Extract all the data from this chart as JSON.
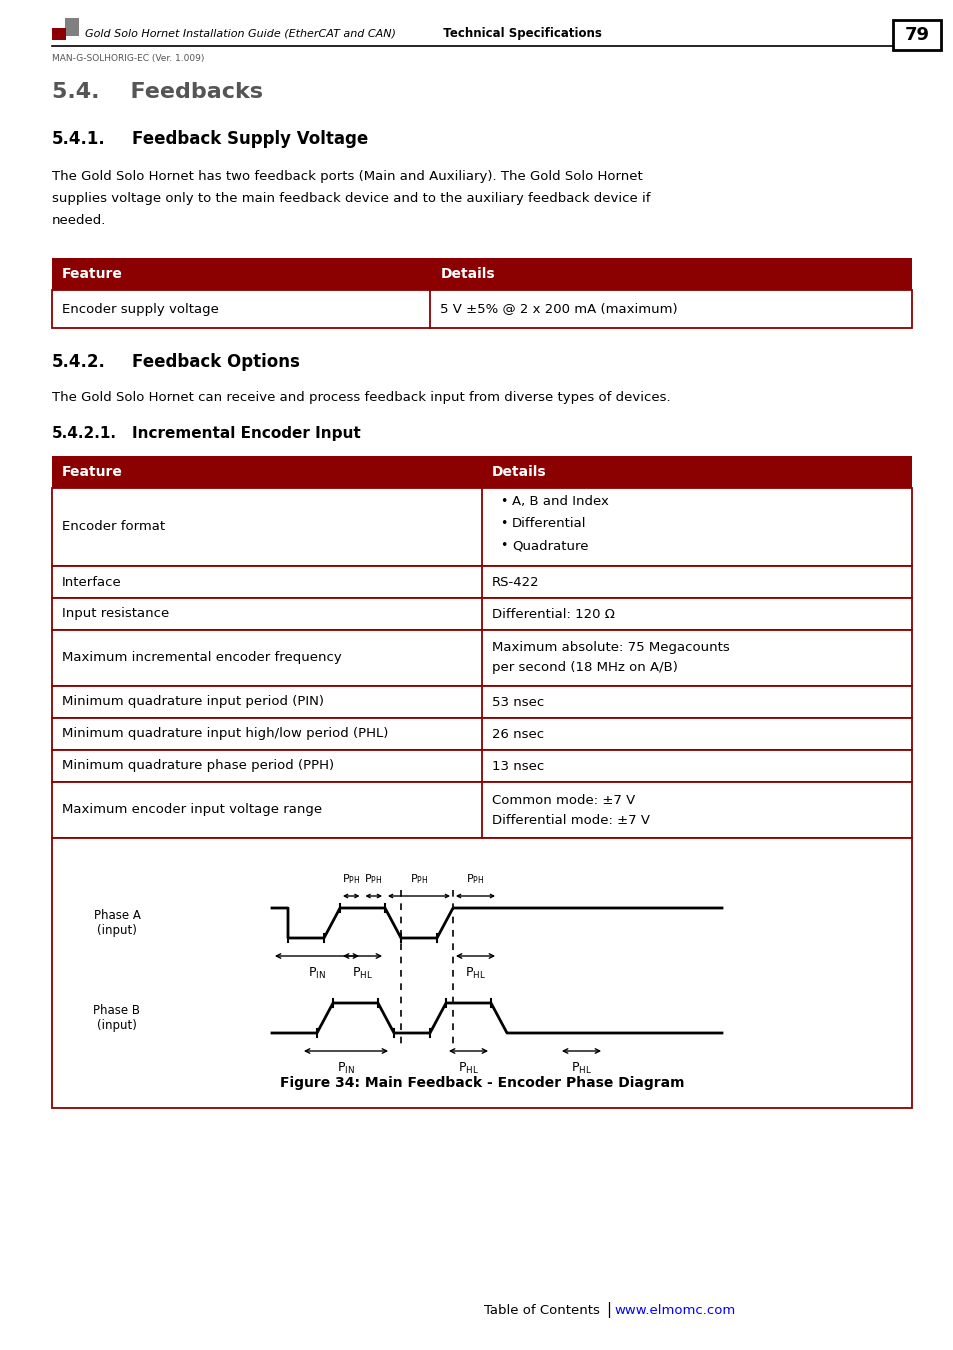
{
  "page_title": "Gold Solo Hornet Installation Guide (EtherCAT and CAN)",
  "page_title_bold": "  Technical Specifications",
  "page_num": "79",
  "doc_id": "MAN-G-SOLHORIG-EC (Ver. 1.009)",
  "section_54": "5.4.    Feedbacks",
  "section_541_num": "5.4.1.",
  "section_541_title": "Feedback Supply Voltage",
  "para_541_lines": [
    "The Gold Solo Hornet has two feedback ports (Main and Auxiliary). The Gold Solo Hornet",
    "supplies voltage only to the main feedback device and to the auxiliary feedback device if",
    "needed."
  ],
  "table1_header": [
    "Feature",
    "Details"
  ],
  "table1_rows": [
    [
      "Encoder supply voltage",
      "5 V ±5% @ 2 x 200 mA (maximum)"
    ]
  ],
  "section_542_num": "5.4.2.",
  "section_542_title": "Feedback Options",
  "para_542": "The Gold Solo Hornet can receive and process feedback input from diverse types of devices.",
  "section_5421_num": "5.4.2.1.",
  "section_5421_title": "Incremental Encoder Input",
  "table2_header": [
    "Feature",
    "Details"
  ],
  "table2_rows": [
    [
      "Encoder format",
      "bullet:A, B and Index|Differential|Quadrature"
    ],
    [
      "Interface",
      "RS-422"
    ],
    [
      "Input resistance",
      "Differential: 120 Ω"
    ],
    [
      "Maximum incremental encoder frequency",
      "Maximum absolute: 75 Megacounts\nper second (18 MHz on A/B)"
    ],
    [
      "Minimum quadrature input period (PIN)",
      "53 nsec"
    ],
    [
      "Minimum quadrature input high/low period (PHL)",
      "26 nsec"
    ],
    [
      "Minimum quadrature phase period (PPH)",
      "13 nsec"
    ],
    [
      "Maximum encoder input voltage range",
      "Common mode: ±7 V\nDifferential mode: ±7 V"
    ],
    [
      "diagram",
      ""
    ]
  ],
  "fig_caption": "Figure 34: Main Feedback - Encoder Phase Diagram",
  "footer_left": "Table of Contents",
  "footer_link": "www.elmomc.com",
  "dark_red": "#8B0000",
  "white": "#FFFFFF",
  "black": "#000000"
}
